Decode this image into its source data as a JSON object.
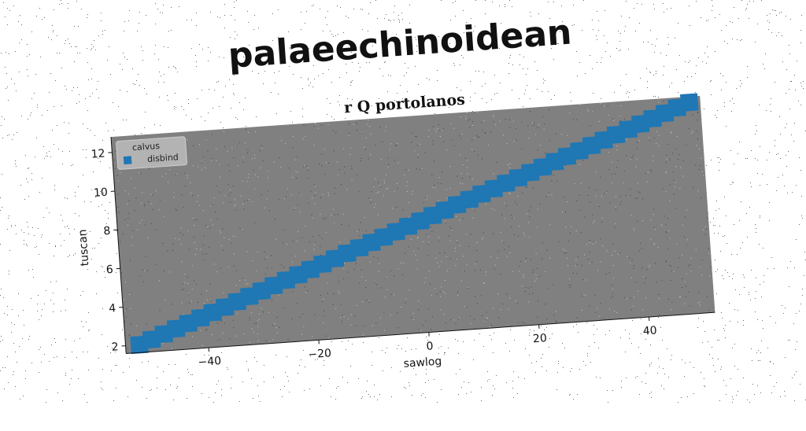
{
  "page_title": "palaeechinoidean",
  "chart_data": {
    "type": "line",
    "title": "r Q portolanos",
    "xlabel": "sawlog",
    "ylabel": "tuscan",
    "xlim": [
      -55,
      52
    ],
    "ylim": [
      1.6,
      12.8
    ],
    "xticks": [
      -40,
      -20,
      0,
      20,
      40
    ],
    "yticks": [
      2,
      4,
      6,
      8,
      10,
      12
    ],
    "xtick_labels": [
      "−40",
      "−20",
      "0",
      "20",
      "40"
    ],
    "ytick_labels": [
      "2",
      "4",
      "6",
      "8",
      "10",
      "12"
    ],
    "grid": false,
    "legend": {
      "title": "calvus",
      "placement": "top-left"
    },
    "series": [
      {
        "name": "disbind",
        "color": "#1f77b4",
        "marker": "square",
        "x": [
          -52.5,
          50
        ],
        "y": [
          2.0,
          12.5
        ]
      }
    ],
    "plot_background": "#808080"
  }
}
